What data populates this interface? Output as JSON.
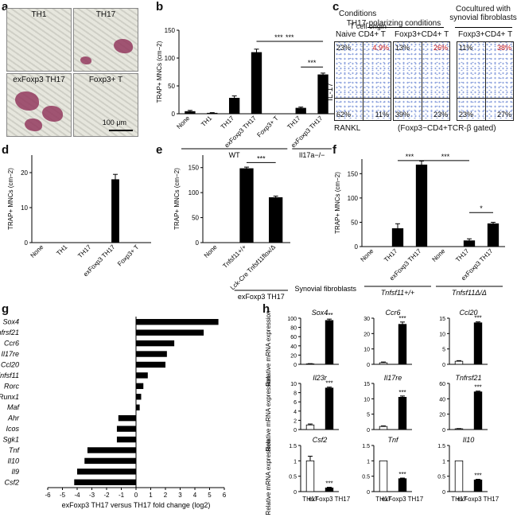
{
  "panels": {
    "a": {
      "letter": "a",
      "images": [
        "TH1",
        "TH17",
        "exFoxp3 TH17",
        "Foxp3+ T"
      ],
      "scale_bar": "100 μm"
    },
    "b": {
      "letter": "b"
    },
    "c": {
      "letter": "c",
      "conditions_label": "Conditions",
      "origin_label": "T cell origin",
      "header_polarizing": "TH17-polarizing conditions",
      "header_coculture": "Cocultured with synovial fibroblasts",
      "plots": [
        {
          "title": "Naive CD4+ T",
          "ul": "23%",
          "ur": "4.9%",
          "ll": "62%",
          "lr": "11%"
        },
        {
          "title": "Foxp3+CD4+ T",
          "ul": "13%",
          "ur": "26%",
          "ll": "39%",
          "lr": "23%"
        },
        {
          "title": "Foxp3+CD4+ T",
          "ul": "11%",
          "ur": "38%",
          "ll": "23%",
          "lr": "27%"
        }
      ],
      "ylabel": "IL-17",
      "xlabel": "RANKL",
      "gate_label": "(Foxp3−CD4+TCR-β gated)"
    },
    "d": {
      "letter": "d"
    },
    "e": {
      "letter": "e"
    },
    "f": {
      "letter": "f"
    },
    "g": {
      "letter": "g"
    },
    "h": {
      "letter": "h"
    }
  },
  "chart_data": [
    {
      "id": "b",
      "type": "bar",
      "ylabel": "TRAP+ MNCs (cm−2)",
      "ylim": [
        0,
        150
      ],
      "yticks": [
        0,
        50,
        100,
        150
      ],
      "categories": [
        "None",
        "TH1",
        "TH17",
        "exFoxp3 TH17",
        "Foxp3+ T",
        "TH17",
        "exFoxp3 TH17"
      ],
      "values": [
        4,
        1,
        28,
        110,
        0,
        10,
        70
      ],
      "errors": [
        2,
        1,
        4,
        6,
        0,
        2,
        3
      ],
      "groups": [
        {
          "label": "WT",
          "from": 0,
          "to": 4
        },
        {
          "label": "Il17a−/−",
          "from": 5,
          "to": 6
        }
      ],
      "significance": [
        {
          "from": 3,
          "to": 5,
          "label": "***",
          "level": 130
        },
        {
          "from": 3,
          "to": 6,
          "label": "***",
          "level": 130
        },
        {
          "from": 5,
          "to": 6,
          "label": "***",
          "level": 84
        }
      ]
    },
    {
      "id": "d",
      "type": "bar",
      "ylabel": "TRAP+ MNCs (cm−2)",
      "ylim": [
        0,
        25
      ],
      "yticks": [
        0,
        10,
        20
      ],
      "categories": [
        "None",
        "TH1",
        "TH17",
        "exFoxp3 TH17",
        "Foxp3+ T"
      ],
      "values": [
        0,
        0,
        0,
        18,
        0
      ],
      "errors": [
        0,
        0,
        0,
        1.5,
        0
      ],
      "groups": [],
      "significance": []
    },
    {
      "id": "e",
      "type": "bar",
      "ylabel": "TRAP+ MNCs (cm−2)",
      "ylim": [
        0,
        175
      ],
      "yticks": [
        0,
        50,
        100,
        150
      ],
      "categories": [
        "None",
        "Tnfsf11+/+",
        "Lck-Cre Tnfsf11flox/Δ"
      ],
      "values": [
        0,
        148,
        90
      ],
      "errors": [
        0,
        3,
        3
      ],
      "groups": [
        {
          "label": "exFoxp3 TH17",
          "from": 1,
          "to": 2
        }
      ],
      "significance": [
        {
          "from": 1,
          "to": 2,
          "label": "***",
          "level": 160
        }
      ]
    },
    {
      "id": "f",
      "type": "bar",
      "ylabel": "TRAP+ MNCs (cm−2)",
      "ylim": [
        0,
        180
      ],
      "yticks": [
        0,
        50,
        100,
        150
      ],
      "categories": [
        "None",
        "TH17",
        "exFoxp3 TH17",
        "None",
        "TH17",
        "exFoxp3 TH17"
      ],
      "values": [
        0,
        37,
        168,
        0,
        12,
        47
      ],
      "errors": [
        0,
        10,
        8,
        0,
        4,
        3
      ],
      "row_label": "Synovial fibroblasts",
      "groups": [
        {
          "label": "Tnfsf11+/+",
          "from": 0,
          "to": 2
        },
        {
          "label": "Tnfsf11Δ/Δ",
          "from": 3,
          "to": 5
        }
      ],
      "significance": [
        {
          "from": 1,
          "to": 2,
          "label": "***",
          "level": 177
        },
        {
          "from": 2,
          "to": 4,
          "label": "***",
          "level": 177
        },
        {
          "from": 4,
          "to": 5,
          "label": "*",
          "level": 70
        }
      ]
    },
    {
      "id": "g",
      "type": "bar",
      "orientation": "horizontal",
      "xlabel": "exFoxp3 TH17 versus TH17 fold change (log2)",
      "xlim": [
        -6,
        6
      ],
      "xticks": [
        -6,
        -5,
        -4,
        -3,
        -2,
        -1,
        0,
        1,
        2,
        3,
        4,
        5,
        6
      ],
      "categories": [
        "Sox4",
        "Tnfrsf21",
        "Ccr6",
        "Il17re",
        "Ccl20",
        "Tnfsf11",
        "Rorc",
        "Runx1",
        "Maf",
        "Ahr",
        "Icos",
        "Sgk1",
        "Tnf",
        "Il10",
        "Il9",
        "Csf2"
      ],
      "values": [
        5.6,
        4.6,
        2.6,
        2.1,
        2.0,
        0.8,
        0.5,
        0.35,
        0.25,
        -1.2,
        -1.3,
        -1.3,
        -3.3,
        -3.5,
        -4.0,
        -4.2
      ]
    },
    {
      "id": "h",
      "type": "bar",
      "ylabel": "Relative mRNA expression",
      "categories": [
        "TH17",
        "exFoxp3 TH17"
      ],
      "subplots": [
        {
          "gene": "Sox4",
          "values": [
            1,
            95
          ],
          "errors": [
            0.5,
            3
          ],
          "ylim": [
            0,
            100
          ],
          "yticks": [
            0,
            20,
            40,
            60,
            80,
            100
          ],
          "sig": "***"
        },
        {
          "gene": "Ccr6",
          "values": [
            1,
            26
          ],
          "errors": [
            0.5,
            1.5
          ],
          "ylim": [
            0,
            30
          ],
          "yticks": [
            0,
            10,
            20,
            30
          ],
          "sig": "***"
        },
        {
          "gene": "Ccl20",
          "values": [
            1,
            13.5
          ],
          "errors": [
            0.2,
            0.3
          ],
          "ylim": [
            0,
            15
          ],
          "yticks": [
            0,
            5,
            10,
            15
          ],
          "sig": "***"
        },
        {
          "gene": "Il23r",
          "values": [
            1,
            9
          ],
          "errors": [
            0.2,
            0.2
          ],
          "ylim": [
            0,
            10
          ],
          "yticks": [
            0,
            2,
            4,
            6,
            8,
            10
          ],
          "sig": "***"
        },
        {
          "gene": "Il17re",
          "values": [
            1,
            10.5
          ],
          "errors": [
            0.2,
            0.4
          ],
          "ylim": [
            0,
            15
          ],
          "yticks": [
            0,
            5,
            10,
            15
          ],
          "sig": "***"
        },
        {
          "gene": "Tnfrsf21",
          "values": [
            1,
            49
          ],
          "errors": [
            0.3,
            1
          ],
          "ylim": [
            0,
            60
          ],
          "yticks": [
            0,
            20,
            40,
            60
          ],
          "sig": "***"
        },
        {
          "gene": "Csf2",
          "values": [
            1,
            0.12
          ],
          "errors": [
            0.15,
            0.02
          ],
          "ylim": [
            0,
            1.5
          ],
          "yticks": [
            0,
            0.5,
            1.0,
            1.5
          ],
          "sig": "***"
        },
        {
          "gene": "Tnf",
          "values": [
            1,
            0.42
          ],
          "errors": [
            0,
            0.02
          ],
          "ylim": [
            0,
            1.5
          ],
          "yticks": [
            0,
            0.5,
            1.0,
            1.5
          ],
          "sig": "***"
        },
        {
          "gene": "Il10",
          "values": [
            1,
            0.38
          ],
          "errors": [
            0,
            0.02
          ],
          "ylim": [
            0,
            1.5
          ],
          "yticks": [
            0,
            0.5,
            1.0,
            1.5
          ],
          "sig": "***"
        }
      ]
    }
  ]
}
